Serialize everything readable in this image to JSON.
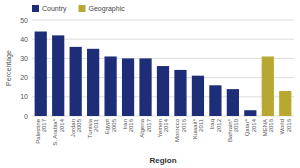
{
  "chart_data": {
    "type": "bar",
    "categories": [
      "Palestine\n2017",
      "S. Arabia*\n2014",
      "Jordan\n2005",
      "Tunisia\n2011",
      "Egypt\n2005",
      "Iran\n2016",
      "Algeria\n2017",
      "Yemen\n2014",
      "Morocco\n2016",
      "Kuwait*\n2011",
      "Iraq\n2012",
      "Bahrain*\n2010",
      "Qatar*\n2014",
      "MENA\n2016",
      "World\n2016"
    ],
    "series": [
      {
        "name": "Country",
        "color": "#1e2d78",
        "values": [
          44,
          42,
          36,
          35,
          31,
          30,
          30,
          26,
          24,
          21,
          16,
          14,
          3,
          null,
          null
        ]
      },
      {
        "name": "Geographic",
        "color": "#b8a832",
        "values": [
          null,
          null,
          null,
          null,
          null,
          null,
          null,
          null,
          null,
          null,
          null,
          null,
          null,
          31,
          13
        ]
      }
    ],
    "ylabel": "Percentage",
    "xlabel": "Region",
    "ylim": [
      0,
      50
    ],
    "yticks": [
      0,
      10,
      20,
      30,
      40,
      50
    ],
    "grid": true,
    "legend": "upper left"
  }
}
